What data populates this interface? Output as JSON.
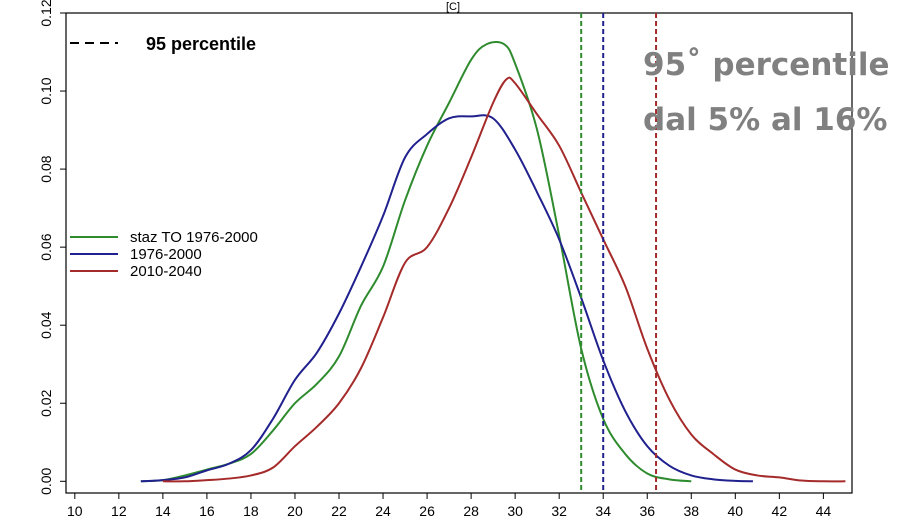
{
  "chart_data": {
    "type": "line",
    "title": "[C]",
    "xlim": [
      9.6,
      45.3
    ],
    "ylim": [
      -0.003,
      0.12
    ],
    "x_ticks": [
      10,
      12,
      14,
      16,
      18,
      20,
      22,
      24,
      26,
      28,
      30,
      32,
      34,
      36,
      38,
      40,
      42,
      44
    ],
    "y_ticks": [
      0.0,
      0.02,
      0.04,
      0.06,
      0.08,
      0.1,
      0.12
    ],
    "y_tick_labels": [
      "0.00",
      "0.02",
      "0.04",
      "0.06",
      "0.08",
      "0.10",
      "0.12"
    ],
    "legend_position": "left-middle",
    "percentile_legend": "95 percentile",
    "series": [
      {
        "name": "staz TO 1976-2000",
        "color": "#2e8b2e",
        "points": [
          [
            13,
            0.0
          ],
          [
            14,
            0.0003
          ],
          [
            15,
            0.0015
          ],
          [
            16,
            0.003
          ],
          [
            17,
            0.0045
          ],
          [
            18,
            0.007
          ],
          [
            19,
            0.013
          ],
          [
            20,
            0.02
          ],
          [
            21,
            0.025
          ],
          [
            22,
            0.032
          ],
          [
            23,
            0.045
          ],
          [
            24,
            0.055
          ],
          [
            25,
            0.072
          ],
          [
            26,
            0.086
          ],
          [
            27,
            0.097
          ],
          [
            28,
            0.108
          ],
          [
            28.7,
            0.112
          ],
          [
            29.5,
            0.112
          ],
          [
            30,
            0.107
          ],
          [
            31,
            0.09
          ],
          [
            32,
            0.063
          ],
          [
            33,
            0.034
          ],
          [
            34,
            0.016
          ],
          [
            35,
            0.007
          ],
          [
            36,
            0.002
          ],
          [
            37,
            0.0005
          ],
          [
            38,
            0.0
          ]
        ]
      },
      {
        "name": "1976-2000",
        "color": "#20208e",
        "points": [
          [
            13,
            0.0
          ],
          [
            14,
            0.0003
          ],
          [
            15,
            0.001
          ],
          [
            16,
            0.0028
          ],
          [
            17,
            0.0045
          ],
          [
            18,
            0.008
          ],
          [
            19,
            0.016
          ],
          [
            20,
            0.026
          ],
          [
            21,
            0.033
          ],
          [
            22,
            0.043
          ],
          [
            23,
            0.055
          ],
          [
            24,
            0.068
          ],
          [
            25,
            0.083
          ],
          [
            26,
            0.089
          ],
          [
            27,
            0.093
          ],
          [
            28,
            0.0935
          ],
          [
            29,
            0.093
          ],
          [
            30,
            0.085
          ],
          [
            31,
            0.074
          ],
          [
            32,
            0.062
          ],
          [
            33,
            0.047
          ],
          [
            34,
            0.031
          ],
          [
            35,
            0.018
          ],
          [
            36,
            0.009
          ],
          [
            37,
            0.004
          ],
          [
            38,
            0.0015
          ],
          [
            39,
            0.0005
          ],
          [
            40,
            0.0001
          ],
          [
            40.8,
            0.0
          ]
        ]
      },
      {
        "name": "2010-2040",
        "color": "#a52a2a",
        "points": [
          [
            14,
            0.0
          ],
          [
            15,
            0.0
          ],
          [
            16,
            0.0003
          ],
          [
            17,
            0.0007
          ],
          [
            18,
            0.0015
          ],
          [
            19,
            0.0035
          ],
          [
            20,
            0.009
          ],
          [
            21,
            0.014
          ],
          [
            22,
            0.02
          ],
          [
            23,
            0.029
          ],
          [
            24,
            0.042
          ],
          [
            25,
            0.056
          ],
          [
            26,
            0.06
          ],
          [
            27,
            0.07
          ],
          [
            28,
            0.083
          ],
          [
            29,
            0.097
          ],
          [
            29.6,
            0.103
          ],
          [
            30,
            0.102
          ],
          [
            31,
            0.094
          ],
          [
            32,
            0.086
          ],
          [
            33,
            0.074
          ],
          [
            34,
            0.062
          ],
          [
            35,
            0.05
          ],
          [
            36,
            0.034
          ],
          [
            37,
            0.021
          ],
          [
            38,
            0.012
          ],
          [
            39,
            0.007
          ],
          [
            40,
            0.003
          ],
          [
            41,
            0.0015
          ],
          [
            42,
            0.001
          ],
          [
            43,
            0.0002
          ],
          [
            44,
            0.0
          ],
          [
            45,
            0.0
          ]
        ]
      }
    ],
    "percentiles": [
      {
        "name": "staz TO 1976-2000",
        "x": 33.0,
        "color": "#2e8b2e"
      },
      {
        "name": "1976-2000",
        "x": 34.0,
        "color": "#20208e"
      },
      {
        "name": "2010-2040",
        "x": 36.4,
        "color": "#a52a2a"
      }
    ],
    "annotation": [
      "95˚ percentile",
      "dal 5% al 16%"
    ]
  }
}
